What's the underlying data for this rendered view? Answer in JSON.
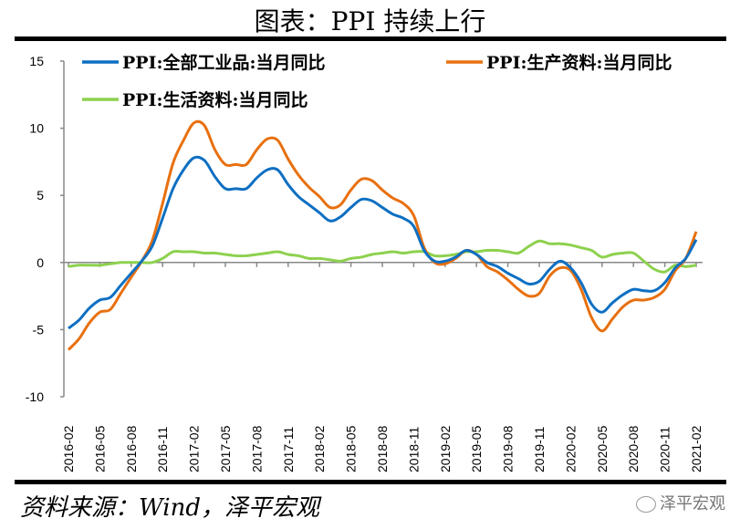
{
  "title": "图表：PPI 持续上行",
  "source": "资料来源：Wind，泽平宏观",
  "watermark": "泽平宏观",
  "chart_data": {
    "type": "line",
    "title": "图表：PPI 持续上行",
    "xlabel": "",
    "ylabel": "",
    "ylim": [
      -10,
      15
    ],
    "yticks": [
      15,
      10,
      5,
      0,
      -5,
      -10
    ],
    "xtick_labels": [
      "2016-02",
      "2016-05",
      "2016-08",
      "2016-11",
      "2017-02",
      "2017-05",
      "2017-08",
      "2017-11",
      "2018-02",
      "2018-05",
      "2018-08",
      "2018-11",
      "2019-02",
      "2019-05",
      "2019-08",
      "2019-11",
      "2020-02",
      "2020-05",
      "2020-08",
      "2020-11",
      "2021-02"
    ],
    "x_start": "2016-02",
    "legend_position": "top-left",
    "series": [
      {
        "name": "PPI:全部工业品:当月同比",
        "color": "#0E6FC2",
        "values": [
          -4.9,
          -4.3,
          -3.4,
          -2.8,
          -2.6,
          -1.7,
          -0.8,
          0.1,
          1.2,
          3.3,
          5.5,
          6.9,
          7.8,
          7.6,
          6.4,
          5.5,
          5.5,
          5.5,
          6.3,
          6.9,
          6.9,
          5.8,
          4.9,
          4.3,
          3.7,
          3.1,
          3.4,
          4.1,
          4.7,
          4.6,
          4.1,
          3.6,
          3.3,
          2.7,
          0.9,
          0.1,
          0.1,
          0.4,
          0.9,
          0.6,
          0.0,
          -0.3,
          -0.8,
          -1.2,
          -1.6,
          -1.4,
          -0.5,
          0.1,
          -0.4,
          -1.5,
          -3.1,
          -3.7,
          -3.0,
          -2.4,
          -2.0,
          -2.1,
          -2.1,
          -1.5,
          -0.4,
          0.3,
          1.7
        ]
      },
      {
        "name": "PPI:生产资料:当月同比",
        "color": "#E8700F",
        "values": [
          -6.5,
          -5.7,
          -4.5,
          -3.7,
          -3.5,
          -2.3,
          -1.1,
          0.1,
          1.6,
          4.4,
          7.4,
          9.1,
          10.4,
          10.2,
          8.4,
          7.3,
          7.3,
          7.3,
          8.4,
          9.2,
          9.1,
          7.7,
          6.5,
          5.6,
          4.9,
          4.1,
          4.3,
          5.4,
          6.2,
          6.1,
          5.4,
          4.8,
          4.4,
          3.5,
          1.1,
          0.0,
          -0.1,
          0.3,
          0.9,
          0.6,
          -0.3,
          -0.7,
          -1.3,
          -2.0,
          -2.5,
          -2.3,
          -1.0,
          -0.4,
          -0.6,
          -2.0,
          -4.1,
          -5.1,
          -4.2,
          -3.3,
          -2.8,
          -2.8,
          -2.6,
          -2.0,
          -0.6,
          0.3,
          2.3
        ]
      },
      {
        "name": "PPI:生活资料:当月同比",
        "color": "#8DD14E",
        "values": [
          -0.3,
          -0.2,
          -0.2,
          -0.2,
          -0.1,
          0.0,
          0.0,
          0.0,
          0.0,
          0.3,
          0.8,
          0.8,
          0.8,
          0.7,
          0.7,
          0.6,
          0.5,
          0.5,
          0.6,
          0.7,
          0.8,
          0.6,
          0.5,
          0.3,
          0.3,
          0.2,
          0.1,
          0.3,
          0.4,
          0.6,
          0.7,
          0.8,
          0.7,
          0.8,
          0.8,
          0.5,
          0.5,
          0.6,
          0.8,
          0.8,
          0.9,
          0.9,
          0.8,
          0.7,
          1.2,
          1.6,
          1.4,
          1.4,
          1.3,
          1.1,
          0.9,
          0.4,
          0.6,
          0.7,
          0.7,
          0.1,
          -0.5,
          -0.7,
          -0.2,
          -0.3,
          -0.2
        ]
      }
    ]
  }
}
